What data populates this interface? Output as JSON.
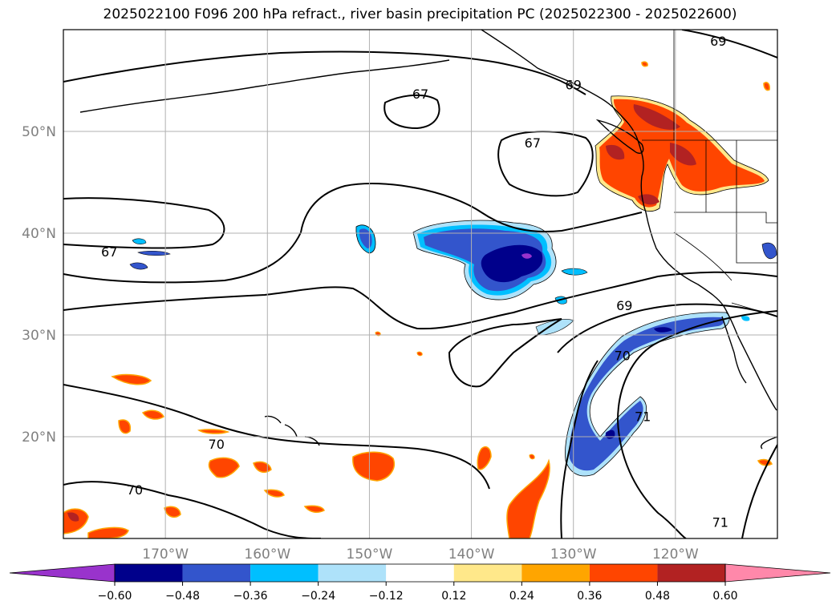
{
  "title": "2025022100 F096 200 hPa refract., river basin precipitation PC (2025022300 - 2025022600)",
  "map": {
    "lon_range": [
      -180,
      -110
    ],
    "lat_range": [
      10,
      60
    ],
    "lat_ticks": [
      {
        "value": 50,
        "label": "50°N"
      },
      {
        "value": 40,
        "label": "40°N"
      },
      {
        "value": 30,
        "label": "30°N"
      },
      {
        "value": 20,
        "label": "20°N"
      }
    ],
    "lon_ticks": [
      {
        "value": -170,
        "label": "170°W"
      },
      {
        "value": -160,
        "label": "160°W"
      },
      {
        "value": -150,
        "label": "150°W"
      },
      {
        "value": -140,
        "label": "140°W"
      },
      {
        "value": -130,
        "label": "130°W"
      },
      {
        "value": -120,
        "label": "120°W"
      }
    ],
    "grid": true,
    "contour_labels": [
      {
        "text": "67",
        "lon": -145.0,
        "lat": 53.7
      },
      {
        "text": "67",
        "lon": -134.0,
        "lat": 48.9
      },
      {
        "text": "67",
        "lon": -175.5,
        "lat": 38.2
      },
      {
        "text": "69",
        "lon": -130.0,
        "lat": 54.6
      },
      {
        "text": "69",
        "lon": -115.8,
        "lat": 58.9
      },
      {
        "text": "69",
        "lon": -125.0,
        "lat": 32.9
      },
      {
        "text": "70",
        "lon": -125.2,
        "lat": 28.0
      },
      {
        "text": "70",
        "lon": -165.0,
        "lat": 19.3
      },
      {
        "text": "70",
        "lon": -173.0,
        "lat": 14.8
      },
      {
        "text": "71",
        "lon": -123.2,
        "lat": 22.0
      },
      {
        "text": "71",
        "lon": -115.6,
        "lat": 11.6
      }
    ]
  },
  "colorbar": {
    "levels": [
      "−0.60",
      "−0.48",
      "−0.36",
      "−0.24",
      "−0.12",
      "0.12",
      "0.24",
      "0.36",
      "0.48",
      "0.60"
    ],
    "colors": [
      "#9933cc",
      "#00008b",
      "#3355cc",
      "#00bfff",
      "#aee2fa",
      "#ffffff",
      "#ffe88a",
      "#ffa500",
      "#ff4500",
      "#b22222",
      "#ff88aa"
    ]
  }
}
